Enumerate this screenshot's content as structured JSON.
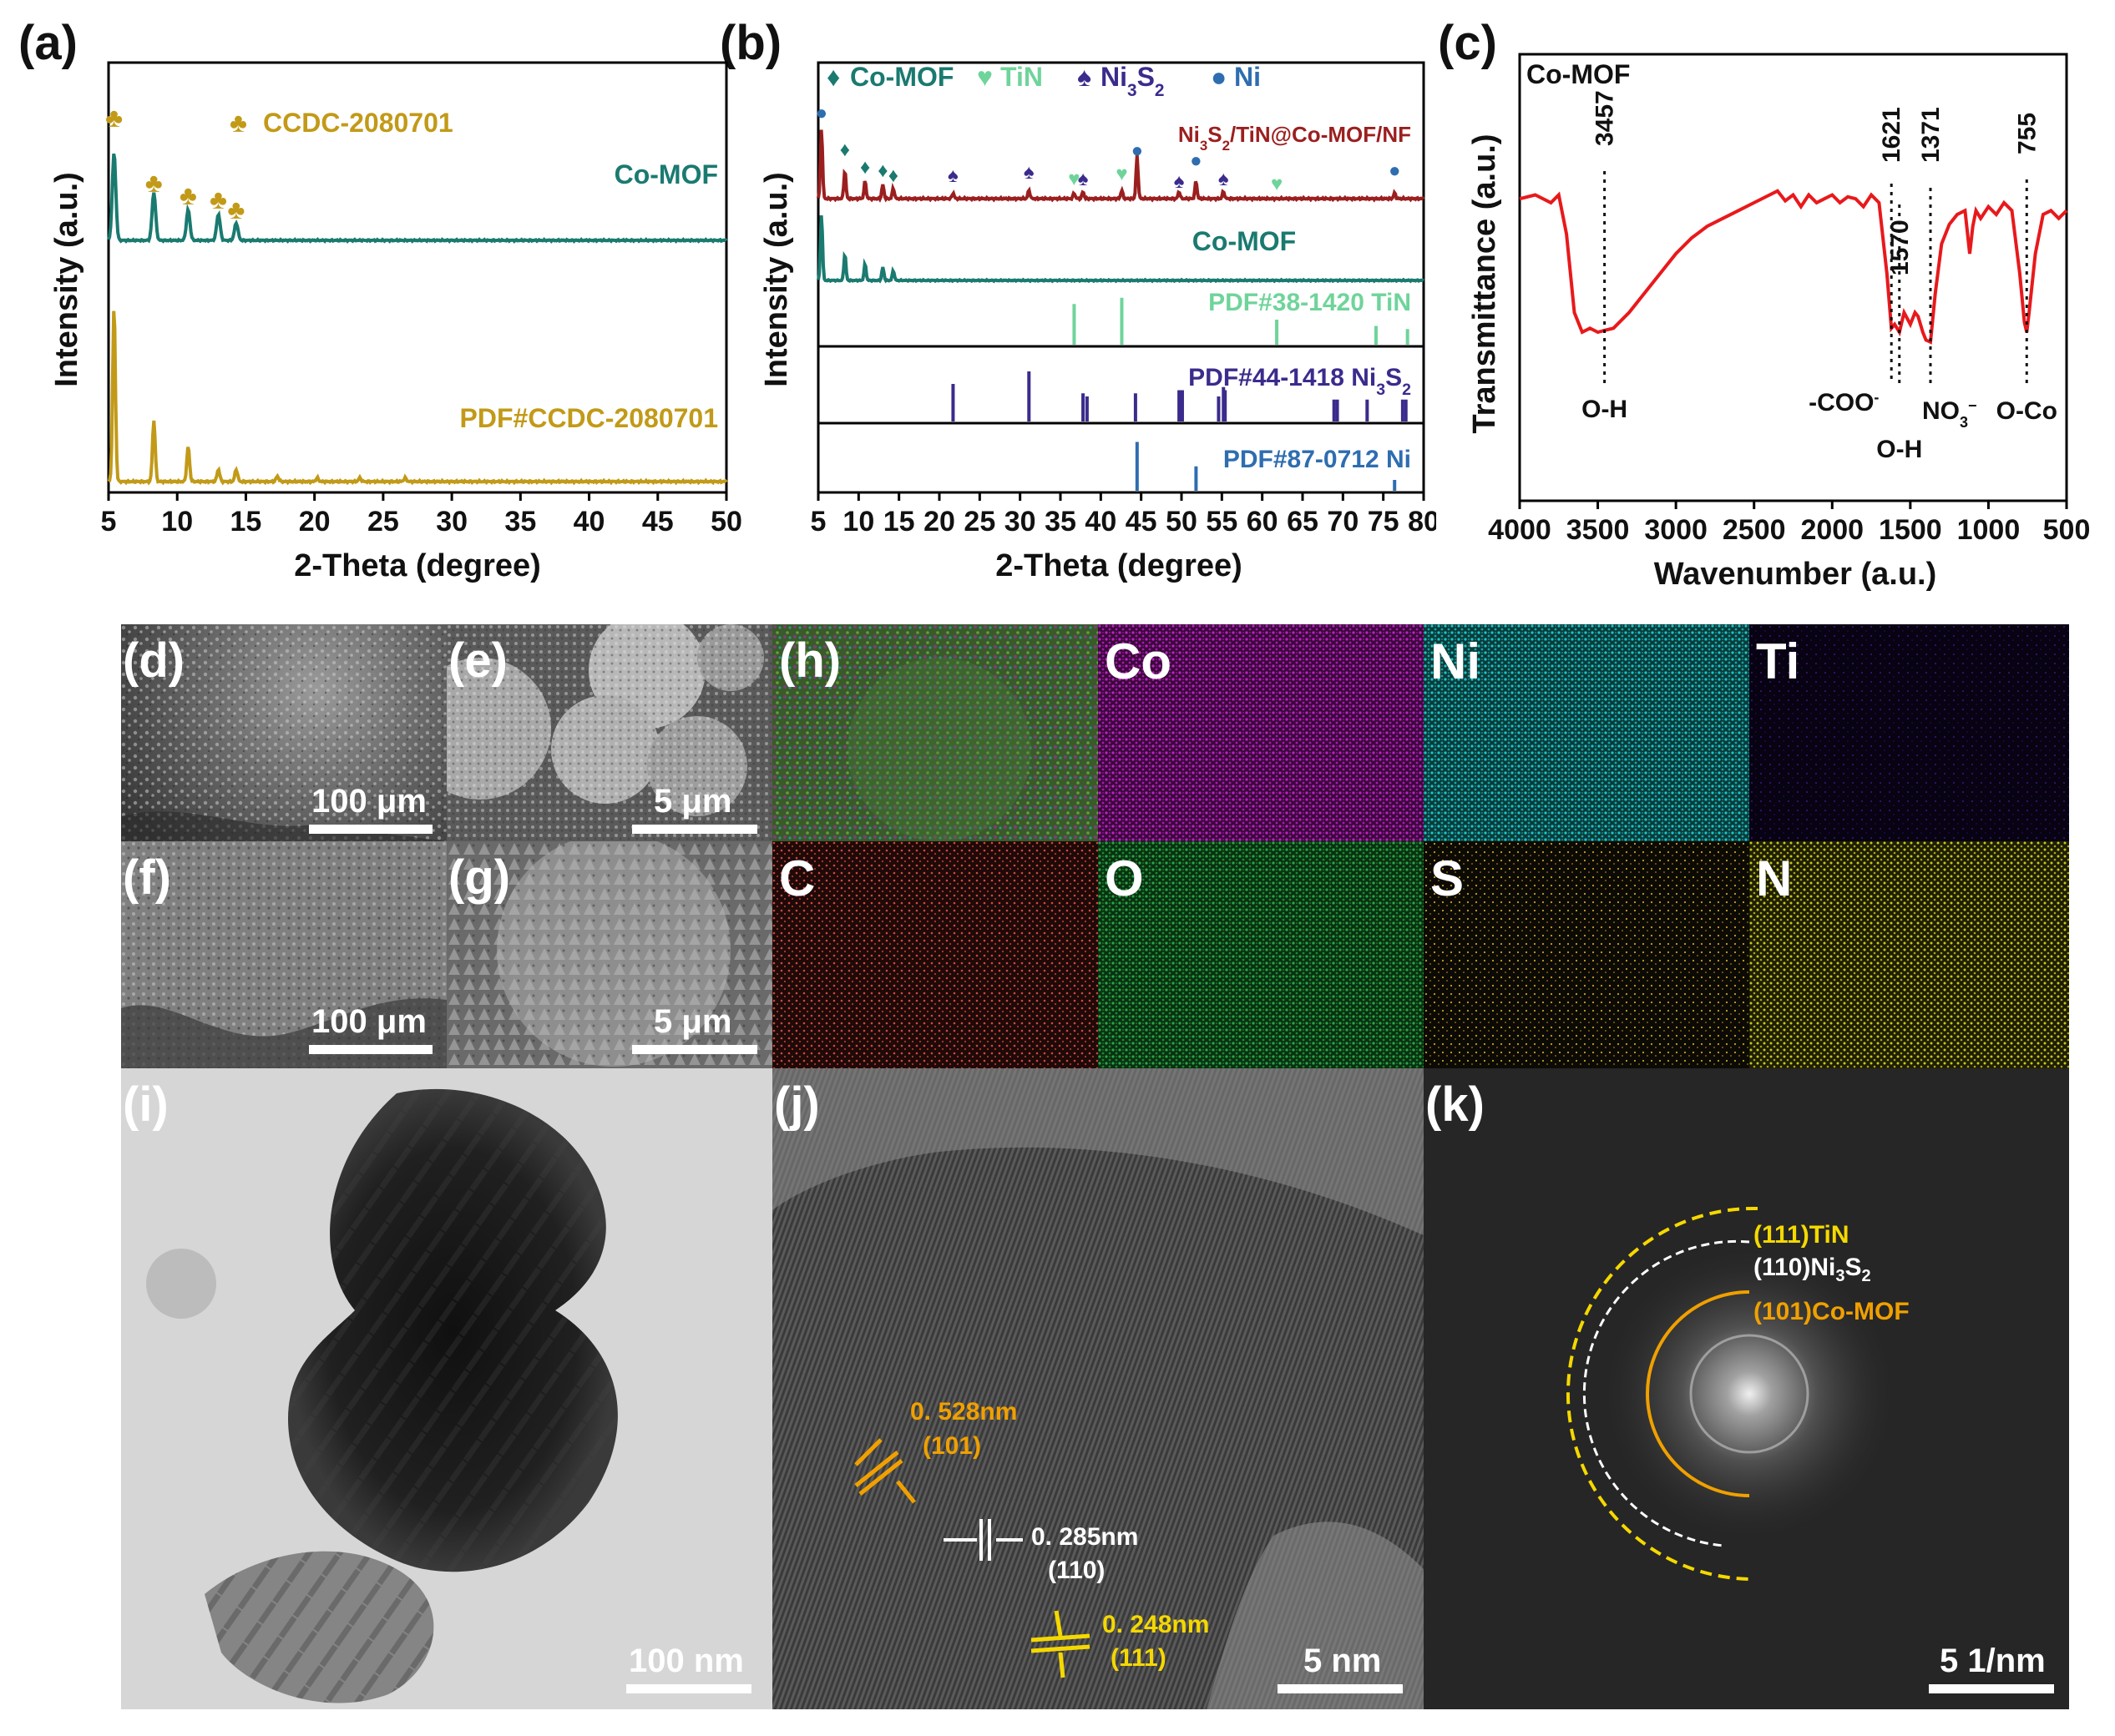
{
  "panels": {
    "a": "(a)",
    "b": "(b)",
    "c": "(c)",
    "d": "(d)",
    "e": "(e)",
    "f": "(f)",
    "g": "(g)",
    "h": "(h)",
    "i": "(i)",
    "j": "(j)",
    "k": "(k)"
  },
  "chart_data": [
    {
      "id": "a",
      "type": "line",
      "xlabel": "2-Theta (degree)",
      "ylabel": "Intensity (a.u.)",
      "xlim": [
        5,
        50
      ],
      "xticks": [
        5,
        10,
        15,
        20,
        25,
        30,
        35,
        40,
        45,
        50
      ],
      "legend_marker": "♣",
      "legend_text": "CCDC-2080701",
      "series": [
        {
          "name": "Co-MOF",
          "color": "#1a7a70",
          "peaks": [
            5.4,
            8.3,
            10.8,
            13.0,
            14.3
          ],
          "rel": [
            1.0,
            0.55,
            0.35,
            0.3,
            0.2
          ]
        },
        {
          "name": "PDF#CCDC-2080701",
          "color": "#c29a18",
          "peaks": [
            5.4,
            8.3,
            10.8,
            13.0,
            14.3,
            17.3,
            20.2,
            23.3,
            26.6
          ],
          "rel": [
            1.0,
            0.35,
            0.2,
            0.07,
            0.07,
            0.03,
            0.02,
            0.02,
            0.02
          ]
        }
      ],
      "peak_marker_positions": [
        5.4,
        8.3,
        10.8,
        13.0,
        14.3
      ]
    },
    {
      "id": "b",
      "type": "line",
      "xlabel": "2-Theta (degree)",
      "ylabel": "Intensity (a.u.)",
      "xlim": [
        5,
        80
      ],
      "xticks": [
        5,
        10,
        15,
        20,
        25,
        30,
        35,
        40,
        45,
        50,
        55,
        60,
        65,
        70,
        75,
        80
      ],
      "legend": [
        {
          "marker": "♦",
          "label": "Co-MOF",
          "color": "#1a7a70"
        },
        {
          "marker": "♥",
          "label": "TiN",
          "color": "#6fd49a"
        },
        {
          "marker": "♠",
          "label": "Ni",
          "sub": "3",
          "label2": "S",
          "sub2": "2",
          "color": "#3b2b8c"
        },
        {
          "marker": "●",
          "label": "Ni",
          "color": "#2e6db0"
        }
      ],
      "series": [
        {
          "name_parts": [
            "Ni",
            "3",
            "S",
            "2",
            "/TiN@Co-MOF/NF"
          ],
          "color": "#9b1f1f",
          "peaks": [
            5.4,
            8.3,
            10.8,
            13.0,
            14.3,
            21.7,
            31.1,
            36.7,
            37.8,
            42.6,
            44.5,
            49.7,
            51.8,
            55.2,
            76.4
          ],
          "rel": [
            1.0,
            0.4,
            0.25,
            0.2,
            0.15,
            0.08,
            0.12,
            0.08,
            0.1,
            0.12,
            0.6,
            0.1,
            0.25,
            0.1,
            0.08
          ]
        },
        {
          "name": "Co-MOF",
          "color": "#1a7a70",
          "peaks": [
            5.4,
            8.3,
            10.8,
            13.0,
            14.3
          ],
          "rel": [
            1.0,
            0.4,
            0.25,
            0.2,
            0.15
          ]
        }
      ],
      "markers": [
        {
          "x": 5.4,
          "sym": "●",
          "color": "#2e6db0"
        },
        {
          "x": 8.3,
          "sym": "♦",
          "color": "#1a7a70"
        },
        {
          "x": 10.8,
          "sym": "♦",
          "color": "#1a7a70"
        },
        {
          "x": 13.0,
          "sym": "♦",
          "color": "#1a7a70"
        },
        {
          "x": 14.3,
          "sym": "♦",
          "color": "#1a7a70"
        },
        {
          "x": 21.7,
          "sym": "♠",
          "color": "#3b2b8c"
        },
        {
          "x": 31.1,
          "sym": "♠",
          "color": "#3b2b8c"
        },
        {
          "x": 36.7,
          "sym": "♥",
          "color": "#6fd49a"
        },
        {
          "x": 37.8,
          "sym": "♠",
          "color": "#3b2b8c"
        },
        {
          "x": 42.6,
          "sym": "♥",
          "color": "#6fd49a"
        },
        {
          "x": 44.5,
          "sym": "●",
          "color": "#2e6db0"
        },
        {
          "x": 49.7,
          "sym": "♠",
          "color": "#3b2b8c"
        },
        {
          "x": 51.8,
          "sym": "●",
          "color": "#2e6db0"
        },
        {
          "x": 55.2,
          "sym": "♠",
          "color": "#3b2b8c"
        },
        {
          "x": 61.8,
          "sym": "♥",
          "color": "#6fd49a"
        },
        {
          "x": 76.4,
          "sym": "●",
          "color": "#2e6db0"
        }
      ],
      "references": [
        {
          "label": "PDF#38-1420 TiN",
          "color": "#6fd49a",
          "peaks": [
            36.7,
            42.6,
            61.8,
            74.1,
            78.0
          ],
          "rel": [
            0.65,
            0.75,
            0.4,
            0.3,
            0.25
          ]
        },
        {
          "label_parts": [
            "PDF#44-1418 Ni",
            "3",
            "S",
            "2"
          ],
          "color": "#3b2b8c",
          "peaks": [
            21.7,
            31.1,
            37.8,
            38.3,
            44.3,
            49.7,
            50.1,
            54.6,
            55.2,
            55.4,
            68.9,
            69.3,
            73.0,
            77.4,
            77.8
          ],
          "rel": [
            0.6,
            0.8,
            0.45,
            0.4,
            0.45,
            0.5,
            0.5,
            0.4,
            0.55,
            0.5,
            0.35,
            0.35,
            0.35,
            0.35,
            0.35
          ]
        },
        {
          "label": "PDF#87-0712 Ni",
          "color": "#2e6db0",
          "peaks": [
            44.5,
            51.8,
            76.4
          ],
          "rel": [
            0.9,
            0.45,
            0.2
          ]
        }
      ]
    },
    {
      "id": "c",
      "type": "line",
      "title": "Co-MOF",
      "xlabel": "Wavenumber (a.u.)",
      "ylabel": "Transmittance (a.u.)",
      "xlim": [
        4000,
        500
      ],
      "xticks": [
        4000,
        3500,
        3000,
        2500,
        2000,
        1500,
        1000,
        500
      ],
      "color": "#e8191c",
      "x": [
        4000,
        3900,
        3800,
        3750,
        3700,
        3650,
        3600,
        3550,
        3500,
        3450,
        3400,
        3300,
        3200,
        3100,
        3000,
        2900,
        2800,
        2700,
        2600,
        2500,
        2400,
        2350,
        2300,
        2250,
        2200,
        2150,
        2100,
        2050,
        2000,
        1950,
        1900,
        1850,
        1800,
        1750,
        1700,
        1650,
        1621,
        1600,
        1570,
        1540,
        1500,
        1470,
        1450,
        1420,
        1400,
        1371,
        1340,
        1300,
        1250,
        1200,
        1150,
        1120,
        1100,
        1080,
        1050,
        1000,
        950,
        900,
        850,
        800,
        770,
        755,
        740,
        700,
        650,
        600,
        550,
        500
      ],
      "y": [
        0.88,
        0.9,
        0.86,
        0.9,
        0.7,
        0.3,
        0.2,
        0.22,
        0.2,
        0.21,
        0.22,
        0.3,
        0.4,
        0.5,
        0.6,
        0.68,
        0.74,
        0.78,
        0.82,
        0.86,
        0.9,
        0.92,
        0.87,
        0.9,
        0.84,
        0.9,
        0.86,
        0.88,
        0.9,
        0.86,
        0.89,
        0.88,
        0.84,
        0.9,
        0.86,
        0.5,
        0.22,
        0.24,
        0.2,
        0.3,
        0.24,
        0.3,
        0.28,
        0.2,
        0.16,
        0.15,
        0.4,
        0.65,
        0.75,
        0.8,
        0.82,
        0.6,
        0.74,
        0.82,
        0.78,
        0.84,
        0.8,
        0.86,
        0.82,
        0.5,
        0.25,
        0.2,
        0.3,
        0.6,
        0.8,
        0.82,
        0.78,
        0.82
      ],
      "annotations": [
        {
          "x": 3457,
          "label": "3457",
          "bottom": "O-H"
        },
        {
          "x": 1621,
          "label": "1621",
          "bottom": "-COO",
          "sup": "-"
        },
        {
          "x": 1570,
          "label": "1570",
          "bottom": "O-H"
        },
        {
          "x": 1371,
          "label": "1371",
          "bottom": "NO",
          "sub": "3",
          "sup": "−"
        },
        {
          "x": 755,
          "label": "755",
          "bottom": "O-Co"
        }
      ]
    }
  ],
  "sem": {
    "d_scale": "100 μm",
    "e_scale": "5 μm",
    "f_scale": "100 μm",
    "g_scale": "5 μm"
  },
  "eds": {
    "Co": "Co",
    "Ni": "Ni",
    "Ti": "Ti",
    "C": "C",
    "O": "O",
    "S": "S",
    "N": "N"
  },
  "tem": {
    "i_scale": "100 nm",
    "j_scale": "5 nm",
    "k_scale": "5 1/nm",
    "d1": "0. 528nm",
    "h1": "(101)",
    "d2": "0. 285nm",
    "h2": "(110)",
    "d3": "0. 248nm",
    "h3": "(111)",
    "ring1": "(111)TiN",
    "ring2_a": "(110)Ni",
    "ring2_b": "3",
    "ring2_c": "S",
    "ring2_d": "2",
    "ring3": "(101)Co-MOF"
  },
  "colors": {
    "co_map": "#c020c8",
    "ni_map": "#18c8c8",
    "ti_map": "#3a1070",
    "c_map": "#d04840",
    "o_map": "#28a848",
    "s_map": "#c8a028",
    "n_map": "#c8c818",
    "yellow": "#f5d800",
    "orange": "#f0a000"
  }
}
